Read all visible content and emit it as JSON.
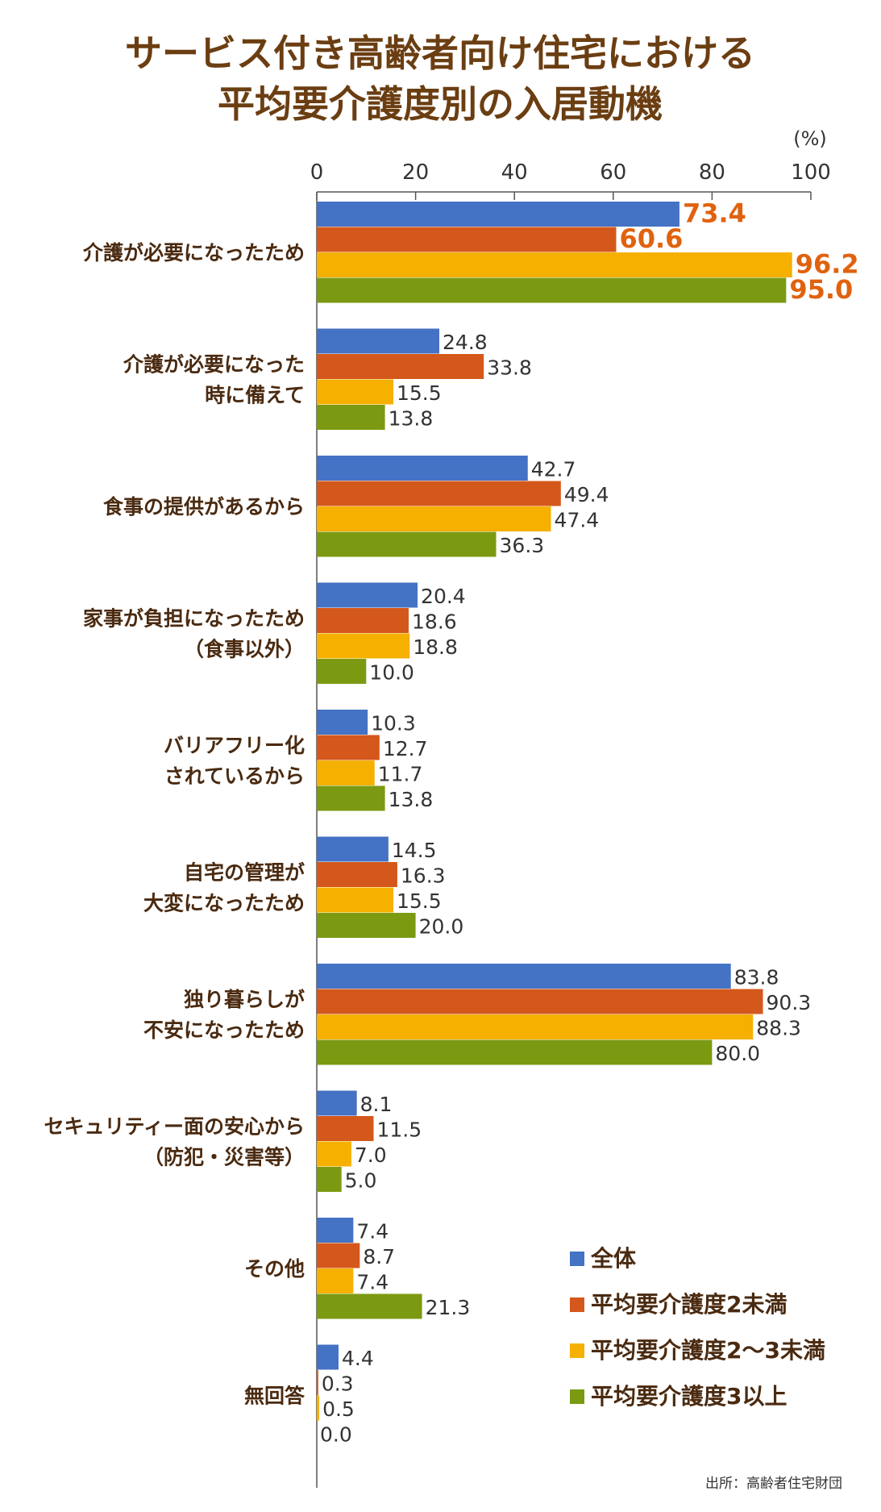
{
  "title_lines": [
    "サービス付き高齢者向け住宅における",
    "平均要介護度別の入居動機"
  ],
  "source": "出所：高齢者住宅財団",
  "chart_data": {
    "type": "bar",
    "orientation": "horizontal",
    "unit": "(%)",
    "xlim": [
      0,
      100
    ],
    "xticks": [
      0,
      20,
      40,
      60,
      80,
      100
    ],
    "grid": false,
    "legend_position": "bottom-right",
    "categories": [
      [
        "介護が必要になったため"
      ],
      [
        "介護が必要になった",
        "時に備えて"
      ],
      [
        "食事の提供があるから"
      ],
      [
        "家事が負担になったため",
        "（食事以外）"
      ],
      [
        "バリアフリー化",
        "されているから"
      ],
      [
        "自宅の管理が",
        "大変になったため"
      ],
      [
        "独り暮らしが",
        "不安になったため"
      ],
      [
        "セキュリティー面の安心から",
        "（防犯・災害等）"
      ],
      [
        "その他"
      ],
      [
        "無回答"
      ]
    ],
    "series": [
      {
        "name": "全体",
        "color": "#4472c4",
        "values": [
          73.4,
          24.8,
          42.7,
          20.4,
          10.3,
          14.5,
          83.8,
          8.1,
          7.4,
          4.4
        ]
      },
      {
        "name": "平均要介護度2未満",
        "color": "#d4581b",
        "values": [
          60.6,
          33.8,
          49.4,
          18.6,
          12.7,
          16.3,
          90.3,
          11.5,
          8.7,
          0.3
        ]
      },
      {
        "name": "平均要介護度2〜3未満",
        "color": "#f5b000",
        "values": [
          96.2,
          15.5,
          47.4,
          18.8,
          11.7,
          15.5,
          88.3,
          7.0,
          7.4,
          0.5
        ]
      },
      {
        "name": "平均要介護度3以上",
        "color": "#7b9a12",
        "values": [
          95.0,
          13.8,
          36.3,
          10.0,
          13.8,
          20.0,
          80.0,
          5.0,
          21.3,
          0.0
        ]
      }
    ],
    "value_labels": [
      [
        "73.4",
        "24.8",
        "42.7",
        "20.4",
        "10.3",
        "14.5",
        "83.8",
        "8.1",
        "7.4",
        "4.4"
      ],
      [
        "60.6",
        "33.8",
        "49.4",
        "18.6",
        "12.7",
        "16.3",
        "90.3",
        "11.5",
        "8.7",
        "0.3"
      ],
      [
        "96.2",
        "15.5",
        "47.4",
        "18.8",
        "11.7",
        "15.5",
        "88.3",
        "7.0",
        "7.4",
        "0.5"
      ],
      [
        "95.0",
        "13.8",
        "36.3",
        "10.0",
        "13.8",
        "20.0",
        "80.0",
        "5.0",
        "21.3",
        "0.0"
      ]
    ],
    "highlighted_category": 0,
    "highlight_color": "#e0620e"
  }
}
